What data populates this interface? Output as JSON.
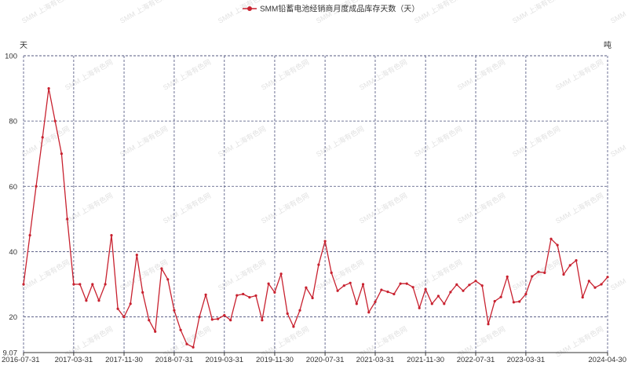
{
  "chart_data": {
    "type": "line",
    "title": "",
    "legend": {
      "label": "SMM铅蓄电池经销商月度成品库存天数（天）",
      "placement": "top-center"
    },
    "y_unit_label": "天",
    "y2_unit_label": "吨",
    "ylim": [
      9.07,
      100
    ],
    "y_ticks": [
      "9.07",
      "20",
      "40",
      "60",
      "80",
      "100"
    ],
    "x_range": [
      "2016-07-31",
      "2024-04-30"
    ],
    "x_tick_labels": [
      "2016-07-31",
      "2017-03-31",
      "2017-11-30",
      "2018-07-31",
      "2019-03-31",
      "2019-11-30",
      "2020-07-31",
      "2021-03-31",
      "2021-11-30",
      "2022-07-31",
      "2023-03-31",
      "2024-04-30"
    ],
    "grid": true,
    "colors": {
      "series": "#c8212f",
      "grid": "#4a4f7a"
    },
    "watermark": "SMM 上海有色网",
    "series": [
      {
        "name": "SMM铅蓄电池经销商月度成品库存天数（天）",
        "points": [
          [
            "2016-07-31",
            30.0
          ],
          [
            "2016-08-31",
            45.0
          ],
          [
            "2016-09-30",
            60.0
          ],
          [
            "2016-10-31",
            75.0
          ],
          [
            "2016-11-30",
            90.0
          ],
          [
            "2016-12-31",
            80.0
          ],
          [
            "2017-01-31",
            70.0
          ],
          [
            "2017-02-28",
            50.0
          ],
          [
            "2017-03-31",
            30.0
          ],
          [
            "2017-04-30",
            30.0
          ],
          [
            "2017-05-31",
            25.0
          ],
          [
            "2017-06-30",
            30.0
          ],
          [
            "2017-07-31",
            25.0
          ],
          [
            "2017-08-31",
            30.0
          ],
          [
            "2017-09-30",
            45.0
          ],
          [
            "2017-10-31",
            22.5
          ],
          [
            "2017-11-30",
            20.0
          ],
          [
            "2017-12-31",
            24.0
          ],
          [
            "2018-01-31",
            39.0
          ],
          [
            "2018-02-28",
            27.5
          ],
          [
            "2018-03-31",
            19.0
          ],
          [
            "2018-04-30",
            15.5
          ],
          [
            "2018-05-31",
            34.8
          ],
          [
            "2018-06-30",
            31.5
          ],
          [
            "2018-07-31",
            22.0
          ],
          [
            "2018-08-31",
            16.0
          ],
          [
            "2018-09-30",
            11.7
          ],
          [
            "2018-10-31",
            10.7
          ],
          [
            "2018-11-30",
            20.0
          ],
          [
            "2018-12-31",
            26.8
          ],
          [
            "2019-01-31",
            19.2
          ],
          [
            "2019-02-28",
            19.4
          ],
          [
            "2019-03-31",
            20.5
          ],
          [
            "2019-04-30",
            19.0
          ],
          [
            "2019-05-31",
            26.6
          ],
          [
            "2019-06-30",
            27.0
          ],
          [
            "2019-07-31",
            26.0
          ],
          [
            "2019-08-31",
            26.5
          ],
          [
            "2019-09-30",
            19.0
          ],
          [
            "2019-10-31",
            30.2
          ],
          [
            "2019-11-30",
            27.5
          ],
          [
            "2019-12-31",
            33.2
          ],
          [
            "2020-01-31",
            21.0
          ],
          [
            "2020-02-29",
            17.0
          ],
          [
            "2020-03-31",
            22.0
          ],
          [
            "2020-04-30",
            29.0
          ],
          [
            "2020-05-31",
            25.8
          ],
          [
            "2020-06-30",
            36.0
          ],
          [
            "2020-07-31",
            43.2
          ],
          [
            "2020-08-31",
            33.5
          ],
          [
            "2020-09-30",
            28.0
          ],
          [
            "2020-10-31",
            29.6
          ],
          [
            "2020-11-30",
            30.4
          ],
          [
            "2020-12-31",
            24.0
          ],
          [
            "2021-01-31",
            30.0
          ],
          [
            "2021-02-28",
            21.4
          ],
          [
            "2021-03-31",
            24.6
          ],
          [
            "2021-04-30",
            28.3
          ],
          [
            "2021-05-31",
            27.7
          ],
          [
            "2021-06-30",
            27.0
          ],
          [
            "2021-07-31",
            30.2
          ],
          [
            "2021-08-31",
            30.2
          ],
          [
            "2021-09-30",
            29.1
          ],
          [
            "2021-10-31",
            22.7
          ],
          [
            "2021-11-30",
            28.5
          ],
          [
            "2021-12-31",
            24.0
          ],
          [
            "2022-01-31",
            26.4
          ],
          [
            "2022-02-28",
            24.0
          ],
          [
            "2022-03-31",
            27.6
          ],
          [
            "2022-04-30",
            29.9
          ],
          [
            "2022-05-31",
            28.0
          ],
          [
            "2022-06-30",
            29.8
          ],
          [
            "2022-07-31",
            31.0
          ],
          [
            "2022-08-31",
            29.6
          ],
          [
            "2022-09-30",
            17.8
          ],
          [
            "2022-10-31",
            24.8
          ],
          [
            "2022-11-30",
            26.1
          ],
          [
            "2022-12-31",
            32.3
          ],
          [
            "2023-01-31",
            24.5
          ],
          [
            "2023-02-28",
            24.7
          ],
          [
            "2023-03-31",
            27.0
          ],
          [
            "2023-04-30",
            32.4
          ],
          [
            "2023-05-31",
            33.8
          ],
          [
            "2023-06-30",
            33.5
          ],
          [
            "2023-07-31",
            43.9
          ],
          [
            "2023-08-31",
            42.0
          ],
          [
            "2023-09-30",
            33.0
          ],
          [
            "2023-10-31",
            35.8
          ],
          [
            "2023-11-30",
            37.3
          ],
          [
            "2023-12-31",
            26.0
          ],
          [
            "2024-01-31",
            31.0
          ],
          [
            "2024-02-29",
            29.0
          ],
          [
            "2024-03-31",
            30.0
          ],
          [
            "2024-04-30",
            32.2
          ]
        ]
      }
    ]
  }
}
